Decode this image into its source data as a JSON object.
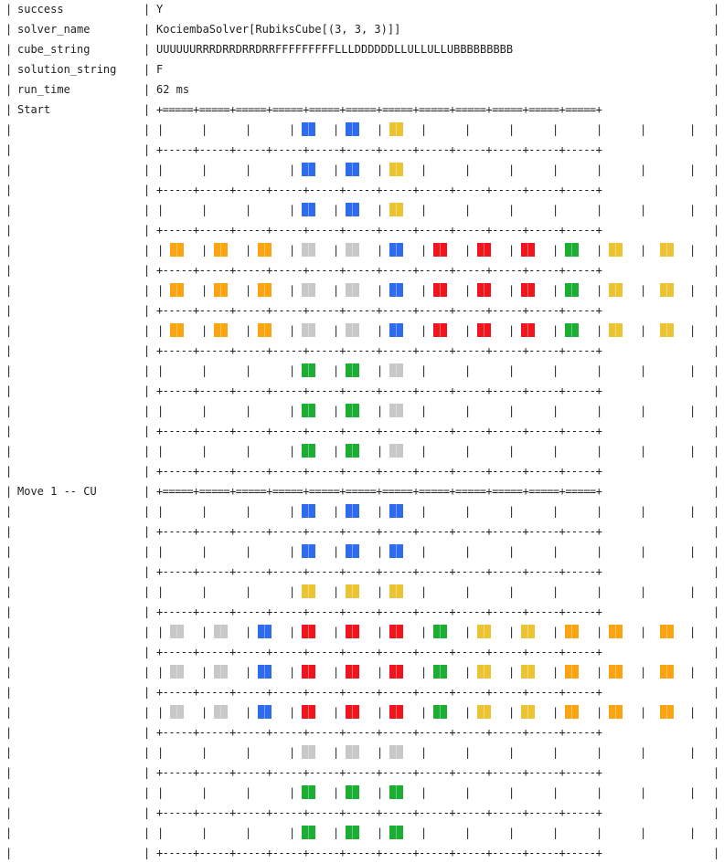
{
  "rows": [
    {
      "key": "success",
      "value": "Y"
    },
    {
      "key": "solver_name",
      "value": "KociembaSolver[RubiksCube[(3, 3, 3)]]"
    },
    {
      "key": "cube_string",
      "value": "UUUUUURRRDRRDRRDRRFFFFFFFFFLLLDDDDDDLLULLULLUBBBBBBBBB"
    },
    {
      "key": "solution_string",
      "value": "F"
    },
    {
      "key": "run_time",
      "value": "62 ms"
    }
  ],
  "boards": [
    {
      "label": "Start",
      "grid": [
        "...BBY......",
        "...BBY......",
        "...BBY......",
        "OOOWWBRRRGYY",
        "OOOWWBRRRGYY",
        "OOOWWBRRRGYY",
        "...GGW......",
        "...GGW......",
        "...GGW......"
      ]
    },
    {
      "label": "Move 1 -- CU",
      "grid": [
        "...BBB......",
        "...BBB......",
        "...YYY......",
        "WWBRRRGYYOOO",
        "WWBRRRGYYOOO",
        "WWBRRRGYYOOO",
        "...WWW......",
        "...GGG......",
        "...GGG......"
      ]
    }
  ],
  "colors": {
    "B": "#2f6bee",
    "Y": "#ecc431",
    "O": "#fca40f",
    "W": "#c8c8c8",
    "R": "#f2141c",
    "G": "#1aaf32"
  },
  "separators": {
    "heavy": "+=====+=====+=====+=====+=====+=====+=====+=====+=====+=====+=====+=====+",
    "light": "+-----+-----+-----+-----+-----+-----+-----+-----+-----+-----+-----+-----+"
  },
  "pipe_char": "|"
}
